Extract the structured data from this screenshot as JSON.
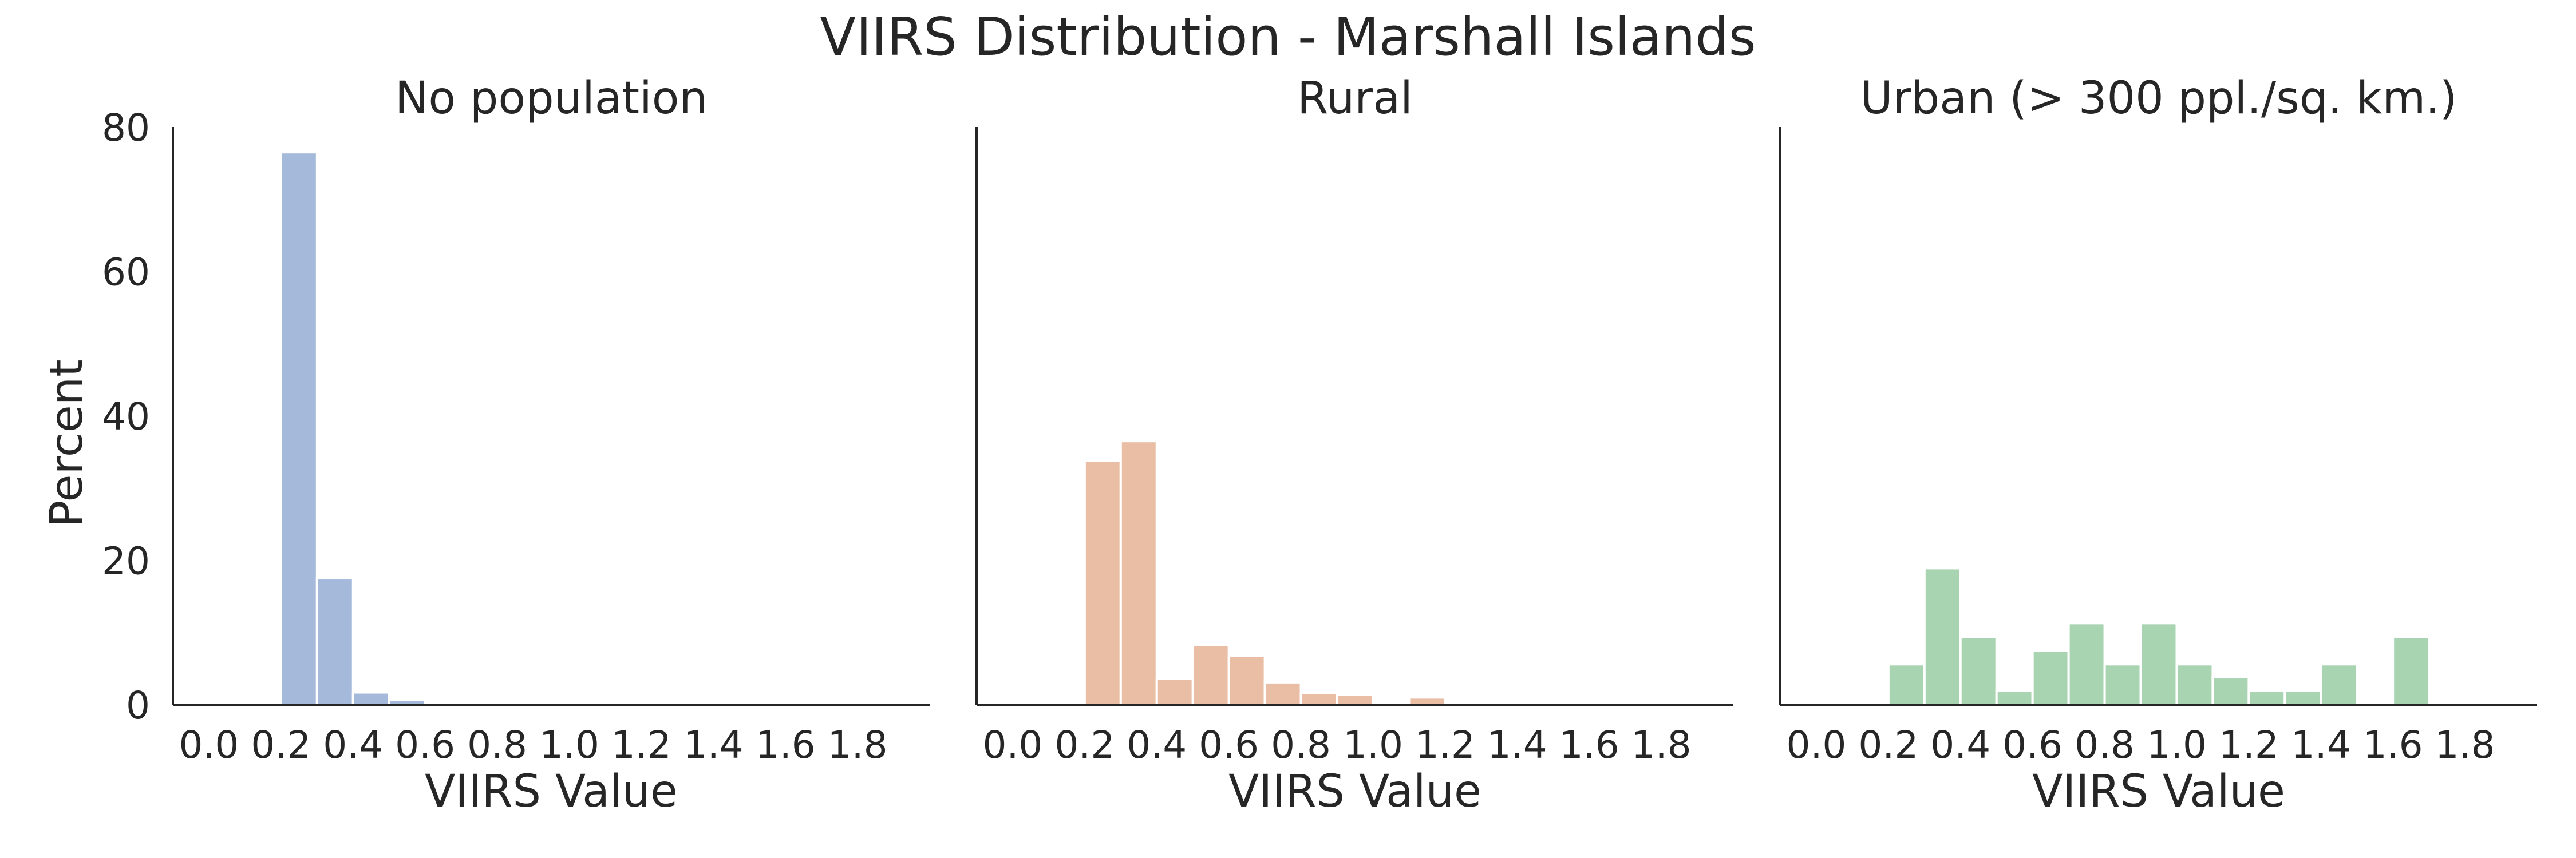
{
  "figure_title": "VIIRS Distribution - Marshall Islands",
  "colors": {
    "no_population": "#a5b9da",
    "rural": "#eabea5",
    "urban": "#a9d4b1",
    "axis": "#262626"
  },
  "chart_data": [
    {
      "type": "bar",
      "title": "No population",
      "xlabel": "VIIRS Value",
      "ylabel": "Percent",
      "xlim": [
        -0.1,
        2.0
      ],
      "ylim": [
        0,
        80
      ],
      "bin_width": 0.1,
      "bin_starts": [
        0.1,
        0.2,
        0.3,
        0.4,
        0.5,
        0.6,
        0.7,
        0.8,
        0.9,
        1.0,
        1.1,
        1.2,
        1.3,
        1.4,
        1.5,
        1.6,
        1.7,
        1.8
      ],
      "values": [
        0.3,
        76.5,
        17.5,
        1.7,
        0.7,
        0.3,
        0.2,
        0.1,
        0.1,
        0.1,
        0.1,
        0.1,
        0.1,
        0.1,
        0.1,
        0.1,
        0.1,
        0.1
      ],
      "x_ticks": [
        "0.0",
        "0.2",
        "0.4",
        "0.6",
        "0.8",
        "1.0",
        "1.2",
        "1.4",
        "1.6",
        "1.8"
      ],
      "y_ticks": [
        "0",
        "20",
        "40",
        "60",
        "80"
      ]
    },
    {
      "type": "bar",
      "title": "Rural",
      "xlabel": "VIIRS Value",
      "ylabel": "",
      "xlim": [
        -0.1,
        2.0
      ],
      "ylim": [
        0,
        80
      ],
      "bin_width": 0.1,
      "bin_starts": [
        0.2,
        0.3,
        0.4,
        0.5,
        0.6,
        0.7,
        0.8,
        0.9,
        1.0,
        1.1,
        1.2,
        1.3,
        1.4,
        1.5,
        1.6,
        1.7,
        1.8
      ],
      "values": [
        33.8,
        36.5,
        3.6,
        8.3,
        6.8,
        3.1,
        1.6,
        1.4,
        0.3,
        1.0,
        0.3,
        0.2,
        0.2,
        0.1,
        0.1,
        0.1,
        0.2
      ],
      "x_ticks": [
        "0.0",
        "0.2",
        "0.4",
        "0.6",
        "0.8",
        "1.0",
        "1.2",
        "1.4",
        "1.6",
        "1.8"
      ],
      "y_ticks": []
    },
    {
      "type": "bar",
      "title": "Urban (> 300 ppl./sq. km.)",
      "xlabel": "VIIRS Value",
      "ylabel": "",
      "xlim": [
        -0.1,
        2.0
      ],
      "ylim": [
        0,
        80
      ],
      "bin_width": 0.1,
      "bin_starts": [
        0.2,
        0.3,
        0.4,
        0.5,
        0.6,
        0.7,
        0.8,
        0.9,
        1.0,
        1.1,
        1.2,
        1.3,
        1.4,
        1.5,
        1.6,
        1.7
      ],
      "values": [
        5.6,
        18.9,
        9.4,
        1.9,
        7.5,
        11.3,
        5.6,
        11.3,
        5.6,
        3.8,
        1.9,
        1.9,
        5.6,
        0,
        9.4,
        0
      ],
      "x_ticks": [
        "0.0",
        "0.2",
        "0.4",
        "0.6",
        "0.8",
        "1.0",
        "1.2",
        "1.4",
        "1.6",
        "1.8"
      ],
      "y_ticks": []
    }
  ]
}
